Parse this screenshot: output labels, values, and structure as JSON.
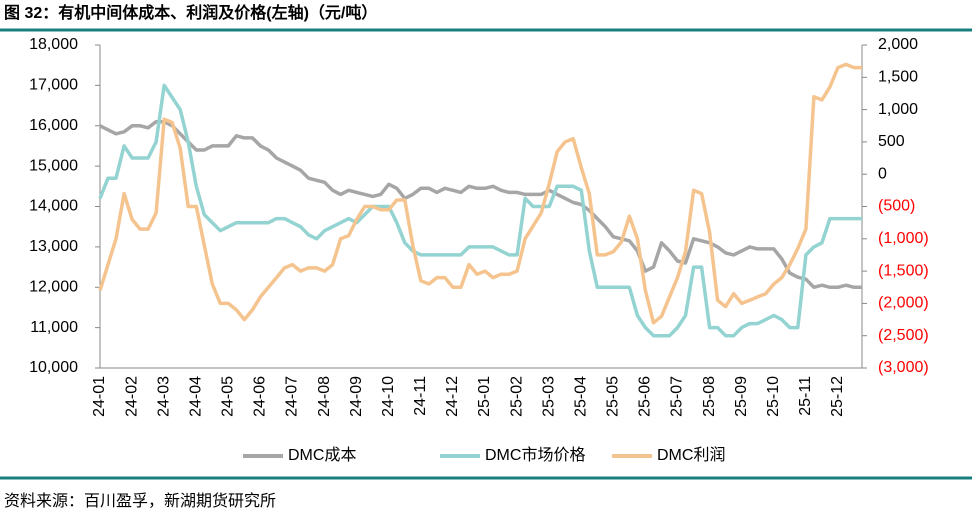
{
  "chart_data": {
    "type": "line",
    "title": "图 32：有机中间体成本、利润及价格(左轴)（元/吨）",
    "source": "资料来源：百川盈孚，新湖期货研究所",
    "categories": [
      "24-01",
      null,
      null,
      null,
      "24-02",
      null,
      null,
      null,
      "24-03",
      null,
      null,
      null,
      "24-04",
      null,
      null,
      null,
      "24-05",
      null,
      null,
      null,
      "24-06",
      null,
      null,
      null,
      "24-07",
      null,
      null,
      null,
      "24-08",
      null,
      null,
      null,
      "24-09",
      null,
      null,
      null,
      "24-10",
      null,
      null,
      null,
      "24-11",
      null,
      null,
      null,
      "24-12",
      null,
      null,
      null,
      "25-01",
      null,
      null,
      null,
      "25-02",
      null,
      null,
      null,
      "25-03",
      null,
      null,
      null,
      "25-04",
      null,
      null,
      null,
      "25-05",
      null,
      null,
      null,
      "25-06",
      null,
      null,
      null,
      "25-07",
      null,
      null,
      null,
      "25-08",
      null,
      null,
      null,
      "25-09",
      null,
      null,
      null,
      "25-10",
      null,
      null,
      null,
      "25-11",
      null,
      null,
      null,
      "25-12",
      null,
      null,
      null
    ],
    "series": [
      {
        "name": "DMC成本",
        "color": "#a6a6a6",
        "values": [
          16000,
          15900,
          15800,
          15850,
          16000,
          16000,
          15950,
          16100,
          16100,
          16000,
          15800,
          15600,
          15400,
          15400,
          15500,
          15500,
          15500,
          15750,
          15700,
          15700,
          15500,
          15400,
          15200,
          15100,
          15000,
          14900,
          14700,
          14650,
          14600,
          14400,
          14300,
          14400,
          14350,
          14300,
          14250,
          14300,
          14550,
          14450,
          14200,
          14300,
          14450,
          14450,
          14350,
          14450,
          14400,
          14350,
          14500,
          14450,
          14450,
          14500,
          14400,
          14350,
          14350,
          14300,
          14300,
          14300,
          14400,
          14300,
          14200,
          14100,
          14050,
          13900,
          13700,
          13500,
          13250,
          13200,
          13150,
          12900,
          12400,
          12500,
          13100,
          12900,
          12650,
          12600,
          13200,
          13150,
          13100,
          13000,
          12850,
          12800,
          12900,
          13000,
          12950,
          12950,
          12950,
          12700,
          12350,
          12250,
          12200,
          12000,
          12050,
          12000,
          12000,
          12050,
          12000,
          12000
        ]
      },
      {
        "name": "DMC市场价格",
        "color": "#93d3d1",
        "values": [
          14200,
          14700,
          14700,
          15500,
          15200,
          15200,
          15200,
          15600,
          17000,
          16700,
          16400,
          15600,
          14500,
          13800,
          13600,
          13400,
          13500,
          13600,
          13600,
          13600,
          13600,
          13600,
          13700,
          13700,
          13600,
          13500,
          13300,
          13200,
          13400,
          13500,
          13600,
          13700,
          13600,
          13800,
          14000,
          14000,
          14000,
          13600,
          13100,
          12900,
          12800,
          12800,
          12800,
          12800,
          12800,
          12800,
          13000,
          13000,
          13000,
          13000,
          12900,
          12800,
          12800,
          14200,
          14000,
          14000,
          14000,
          14500,
          14500,
          14500,
          14400,
          12900,
          12000,
          12000,
          12000,
          12000,
          12000,
          11300,
          11000,
          10800,
          10800,
          10800,
          11000,
          11300,
          12500,
          12500,
          11000,
          11000,
          10800,
          10800,
          11000,
          11100,
          11100,
          11200,
          11300,
          11200,
          11000,
          11000,
          12800,
          13000,
          13100,
          13700,
          13700,
          13700,
          13700,
          13700
        ]
      },
      {
        "name": "DMC利润",
        "color": "#f5c48e",
        "axis": "y2",
        "values": [
          -1800,
          -1400,
          -1000,
          -300,
          -700,
          -850,
          -850,
          -600,
          850,
          800,
          400,
          -500,
          -500,
          -1100,
          -1700,
          -2000,
          -2000,
          -2100,
          -2250,
          -2100,
          -1900,
          -1750,
          -1600,
          -1450,
          -1400,
          -1500,
          -1450,
          -1450,
          -1500,
          -1400,
          -1000,
          -950,
          -700,
          -500,
          -500,
          -550,
          -550,
          -400,
          -400,
          -1100,
          -1650,
          -1700,
          -1600,
          -1600,
          -1750,
          -1750,
          -1400,
          -1550,
          -1500,
          -1600,
          -1550,
          -1550,
          -1500,
          -1000,
          -800,
          -600,
          -150,
          350,
          500,
          550,
          100,
          -300,
          -1250,
          -1250,
          -1200,
          -1050,
          -650,
          -1000,
          -1800,
          -2300,
          -2200,
          -1900,
          -1600,
          -1200,
          -250,
          -300,
          -900,
          -1950,
          -2050,
          -1850,
          -2000,
          -1950,
          -1900,
          -1850,
          -1700,
          -1600,
          -1400,
          -1150,
          -850,
          1200,
          1150,
          1350,
          1650,
          1700,
          1650,
          1650
        ]
      }
    ],
    "ylim": [
      10000,
      18000
    ],
    "yticks": [
      {
        "value": 10000,
        "label": "10,000"
      },
      {
        "value": 11000,
        "label": "11,000"
      },
      {
        "value": 12000,
        "label": "12,000"
      },
      {
        "value": 13000,
        "label": "13,000"
      },
      {
        "value": 14000,
        "label": "14,000"
      },
      {
        "value": 15000,
        "label": "15,000"
      },
      {
        "value": 16000,
        "label": "16,000"
      },
      {
        "value": 17000,
        "label": "17,000"
      },
      {
        "value": 18000,
        "label": "18,000"
      }
    ],
    "y2lim": [
      -3000,
      2000
    ],
    "y2ticks": [
      {
        "value": -3000,
        "label": "(3,000)"
      },
      {
        "value": -2500,
        "label": "(2,500)"
      },
      {
        "value": -2000,
        "label": "(2,000)"
      },
      {
        "value": -1500,
        "label": "(1,500)"
      },
      {
        "value": -1000,
        "label": "(1,000)"
      },
      {
        "value": -500,
        "label": "(500)"
      },
      0,
      500,
      {
        "value": 1000,
        "label": "1,000"
      },
      {
        "value": 1500,
        "label": "1,500"
      },
      {
        "value": 2000,
        "label": "2,000"
      }
    ],
    "y2_negative_color": "#ff0000",
    "legend": "bottom"
  }
}
